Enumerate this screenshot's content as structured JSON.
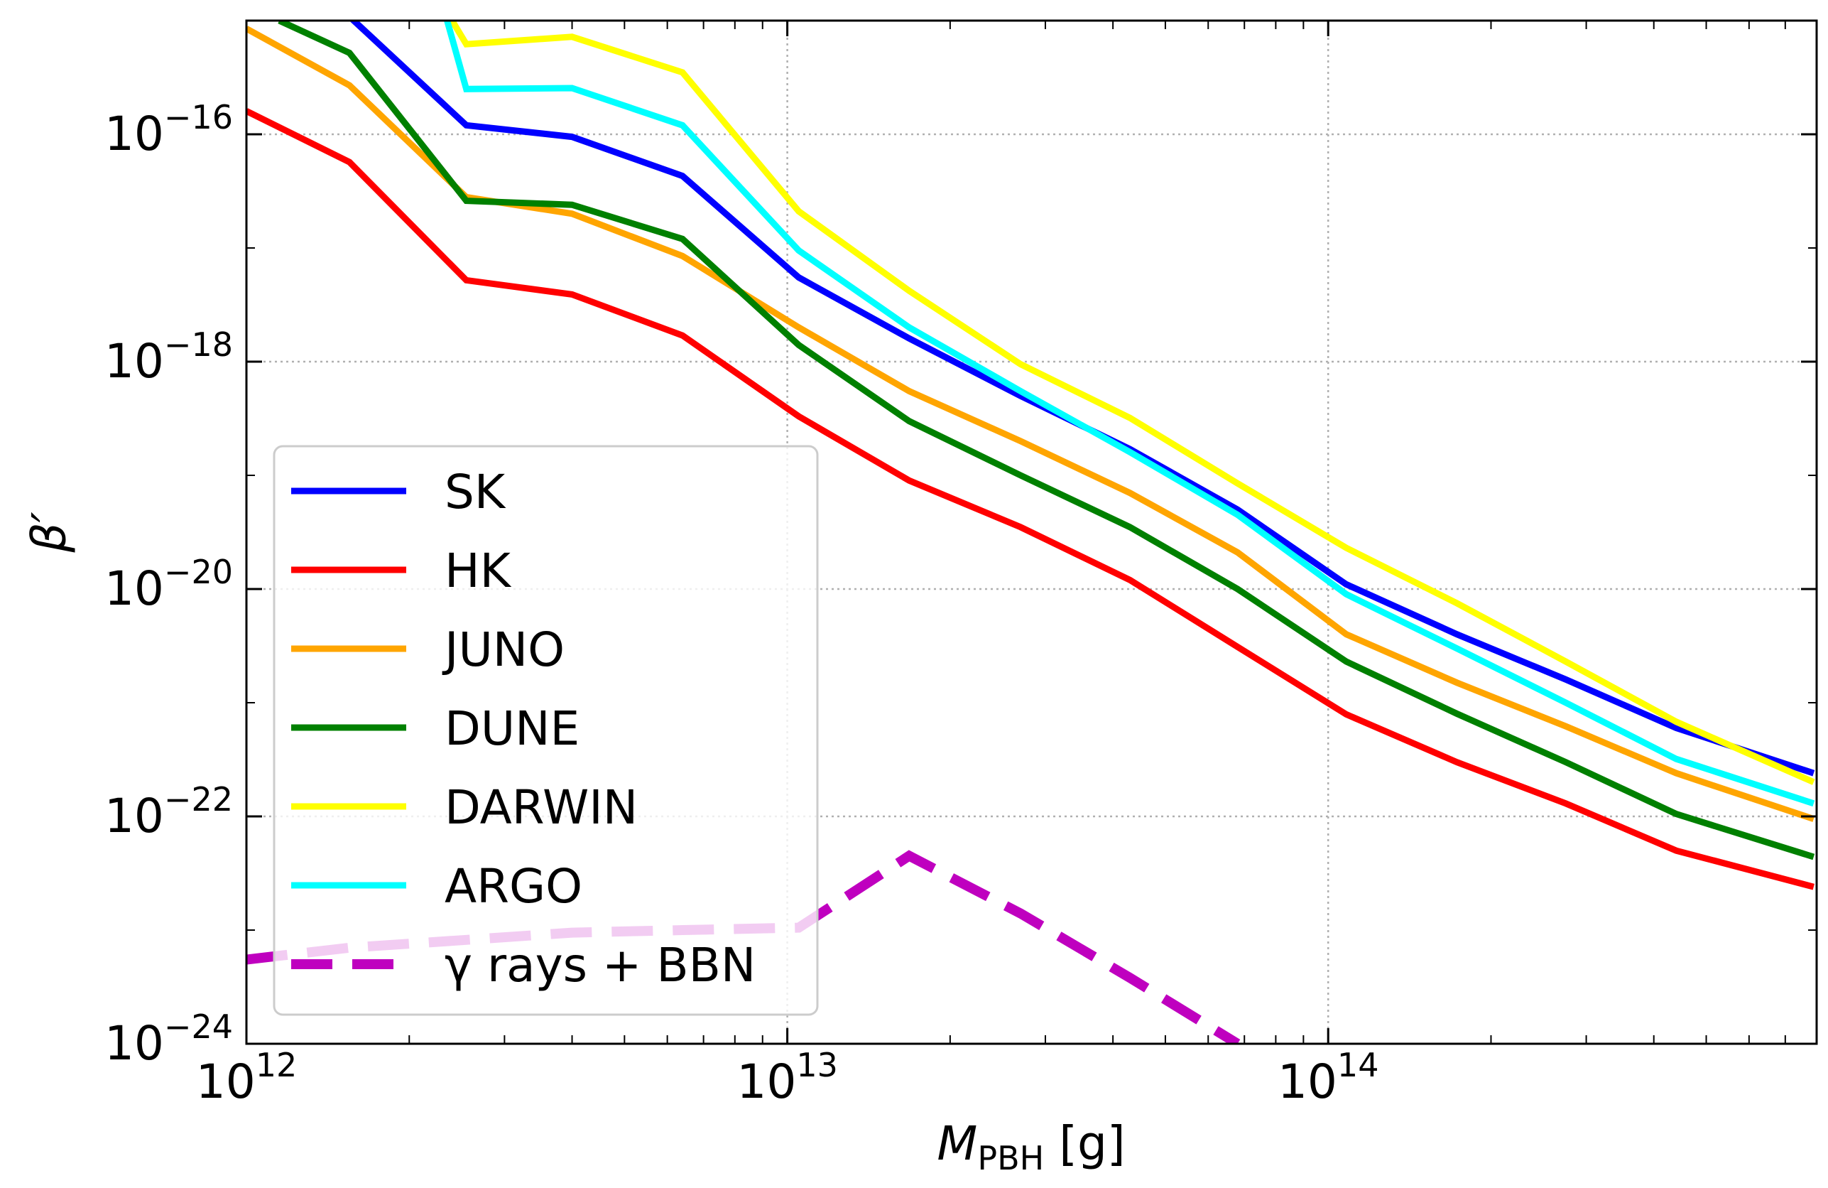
{
  "chart_data": {
    "type": "line",
    "xscale": "log",
    "yscale": "log",
    "xlim": [
      1000000000000.0,
      800000000000000.0
    ],
    "ylim": [
      1e-24,
      1e-15
    ],
    "xlabel": "M_PBH [g]",
    "ylabel": "β′",
    "grid": true,
    "legend_position": "lower-left",
    "x_ticks": [
      {
        "value": 1000000000000.0,
        "base": "10",
        "exp": "12"
      },
      {
        "value": 10000000000000.0,
        "base": "10",
        "exp": "13"
      },
      {
        "value": 100000000000000.0,
        "base": "10",
        "exp": "14"
      }
    ],
    "y_ticks": [
      {
        "value": 1e-24,
        "base": "10",
        "exp": "−24"
      },
      {
        "value": 1e-22,
        "base": "10",
        "exp": "−22"
      },
      {
        "value": 1e-20,
        "base": "10",
        "exp": "−20"
      },
      {
        "value": 1e-18,
        "base": "10",
        "exp": "−18"
      },
      {
        "value": 1e-16,
        "base": "10",
        "exp": "−16"
      }
    ],
    "series": [
      {
        "name": "SK",
        "color": "#0000ff",
        "dash": false,
        "x": [
          1350000000000.0,
          2550000000000.0,
          4000000000000.0,
          6400000000000.0,
          10500000000000.0,
          16800000000000.0,
          27000000000000.0,
          43000000000000.0,
          68000000000000.0,
          108000000000000.0,
          173000000000000.0,
          275000000000000.0,
          440000000000000.0,
          790000000000000.0
        ],
        "y": [
          2e-15,
          1.2e-16,
          9.5e-17,
          4.3e-17,
          5.5e-18,
          1.6e-18,
          5e-19,
          1.7e-19,
          5e-20,
          1.1e-20,
          4e-21,
          1.6e-21,
          6e-22,
          2.4e-22
        ]
      },
      {
        "name": "HK",
        "color": "#ff0000",
        "dash": false,
        "x": [
          1000000000000.0,
          1550000000000.0,
          2550000000000.0,
          4000000000000.0,
          6400000000000.0,
          10500000000000.0,
          16800000000000.0,
          27000000000000.0,
          43000000000000.0,
          68000000000000.0,
          108000000000000.0,
          173000000000000.0,
          275000000000000.0,
          440000000000000.0,
          790000000000000.0
        ],
        "y": [
          1.6e-16,
          5.7e-17,
          5.2e-18,
          3.9e-18,
          1.7e-18,
          3.3e-19,
          9e-20,
          3.5e-20,
          1.2e-20,
          3.1e-21,
          7.9e-22,
          3e-22,
          1.3e-22,
          5e-23,
          2.4e-23
        ]
      },
      {
        "name": "JUNO",
        "color": "#ffa500",
        "dash": false,
        "x": [
          1000000000000.0,
          1550000000000.0,
          2550000000000.0,
          4000000000000.0,
          6400000000000.0,
          10500000000000.0,
          16800000000000.0,
          27000000000000.0,
          43000000000000.0,
          68000000000000.0,
          108000000000000.0,
          173000000000000.0,
          275000000000000.0,
          440000000000000.0,
          790000000000000.0
        ],
        "y": [
          8.5e-16,
          2.7e-16,
          2.8e-17,
          2e-17,
          8.5e-18,
          2e-18,
          5.5e-19,
          2e-19,
          7e-20,
          2.1e-20,
          4e-21,
          1.5e-21,
          6.2e-22,
          2.4e-22,
          9.5e-23
        ]
      },
      {
        "name": "DUNE",
        "color": "#008000",
        "dash": false,
        "x": [
          1150000000000.0,
          1550000000000.0,
          2550000000000.0,
          4000000000000.0,
          6400000000000.0,
          10500000000000.0,
          16800000000000.0,
          27000000000000.0,
          43000000000000.0,
          68000000000000.0,
          108000000000000.0,
          173000000000000.0,
          275000000000000.0,
          440000000000000.0,
          790000000000000.0
        ],
        "y": [
          1e-15,
          5.2e-16,
          2.6e-17,
          2.4e-17,
          1.2e-17,
          1.4e-18,
          3e-19,
          1e-19,
          3.5e-20,
          1e-20,
          2.3e-21,
          8e-22,
          3e-22,
          1.05e-22,
          4.4e-23
        ]
      },
      {
        "name": "DARWIN",
        "color": "#ffff00",
        "dash": false,
        "x": [
          2400000000000.0,
          2550000000000.0,
          4000000000000.0,
          6400000000000.0,
          10500000000000.0,
          16800000000000.0,
          27000000000000.0,
          43000000000000.0,
          68000000000000.0,
          108000000000000.0,
          173000000000000.0,
          275000000000000.0,
          440000000000000.0,
          790000000000000.0
        ],
        "y": [
          1e-15,
          6.2e-16,
          7.2e-16,
          3.5e-16,
          2.1e-17,
          4.2e-18,
          9.5e-19,
          3.2e-19,
          8.5e-20,
          2.3e-20,
          7.5e-21,
          2.3e-21,
          6.8e-22,
          2e-22
        ]
      },
      {
        "name": "ARGO",
        "color": "#00ffff",
        "dash": false,
        "x": [
          2350000000000.0,
          2550000000000.0,
          4000000000000.0,
          6400000000000.0,
          10500000000000.0,
          16800000000000.0,
          27000000000000.0,
          43000000000000.0,
          68000000000000.0,
          108000000000000.0,
          173000000000000.0,
          275000000000000.0,
          440000000000000.0,
          790000000000000.0
        ],
        "y": [
          1e-15,
          2.5e-16,
          2.55e-16,
          1.2e-16,
          9.5e-18,
          2e-18,
          5.5e-19,
          1.6e-19,
          4.5e-20,
          9e-21,
          3e-21,
          1e-21,
          3.2e-22,
          1.3e-22
        ]
      },
      {
        "name": "γ rays + BBN",
        "color": "#bf00bf",
        "dash": true,
        "x": [
          1000000000000.0,
          1550000000000.0,
          2550000000000.0,
          4000000000000.0,
          6400000000000.0,
          10500000000000.0,
          16800000000000.0,
          27000000000000.0,
          43000000000000.0,
          68000000000000.0
        ],
        "y": [
          5.5e-24,
          7e-24,
          8.2e-24,
          9.5e-24,
          1e-23,
          1.05e-23,
          4.5e-23,
          1.4e-23,
          3.8e-24,
          1e-24
        ]
      }
    ]
  }
}
